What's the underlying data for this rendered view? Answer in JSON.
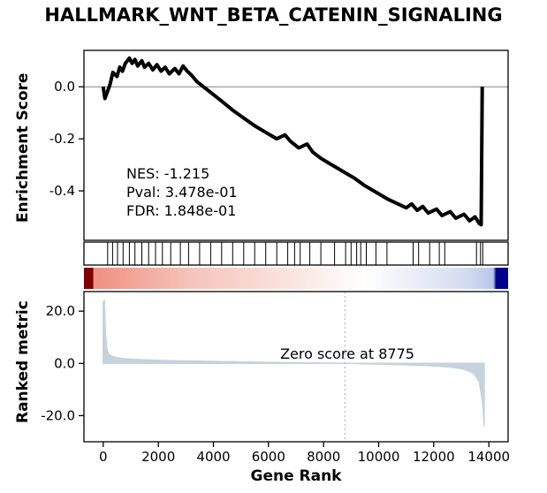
{
  "chart_data": {
    "type": "line",
    "title": "HALLMARK_WNT_BETA_CATENIN_SIGNALING",
    "xlabel": "Gene Rank",
    "xlim": [
      -700,
      14700
    ],
    "xticks": [
      0,
      2000,
      4000,
      6000,
      8000,
      10000,
      12000,
      14000
    ],
    "grid": false,
    "enrichment_score": {
      "ylabel": "Enrichment Score",
      "ylim": [
        -0.59,
        0.14
      ],
      "yticks": [
        0.0,
        -0.2,
        -0.4
      ],
      "line_color": "#000000",
      "zero_line_color": "#808080",
      "stats": {
        "nes_label": "NES: -1.215",
        "pval_label": "Pval: 3.478e-01",
        "fdr_label": "FDR: 1.848e-01",
        "nes": -1.215,
        "pval": "3.478e-01",
        "fdr": "1.848e-01"
      },
      "x": [
        0,
        60,
        150,
        250,
        350,
        500,
        600,
        700,
        800,
        950,
        1050,
        1150,
        1250,
        1400,
        1500,
        1650,
        1800,
        1950,
        2100,
        2250,
        2400,
        2600,
        2750,
        2900,
        3050,
        3200,
        3400,
        3700,
        4000,
        4300,
        4700,
        5100,
        5500,
        5900,
        6300,
        6600,
        6800,
        7100,
        7400,
        7600,
        7900,
        8300,
        8700,
        9100,
        9500,
        9900,
        10300,
        10700,
        11000,
        11200,
        11400,
        11600,
        11800,
        12100,
        12300,
        12600,
        12800,
        13100,
        13300,
        13500,
        13650,
        13720,
        13760
      ],
      "y": [
        0.0,
        -0.045,
        -0.02,
        0.01,
        0.055,
        0.04,
        0.075,
        0.06,
        0.09,
        0.11,
        0.09,
        0.105,
        0.08,
        0.1,
        0.075,
        0.09,
        0.065,
        0.085,
        0.06,
        0.075,
        0.05,
        0.07,
        0.05,
        0.08,
        0.06,
        0.045,
        0.02,
        -0.005,
        -0.03,
        -0.055,
        -0.09,
        -0.12,
        -0.15,
        -0.175,
        -0.2,
        -0.185,
        -0.21,
        -0.235,
        -0.22,
        -0.25,
        -0.275,
        -0.3,
        -0.325,
        -0.35,
        -0.38,
        -0.405,
        -0.43,
        -0.45,
        -0.465,
        -0.45,
        -0.475,
        -0.46,
        -0.485,
        -0.47,
        -0.495,
        -0.48,
        -0.505,
        -0.49,
        -0.515,
        -0.5,
        -0.525,
        -0.53,
        0.0
      ]
    },
    "hits": {
      "color": "#000000",
      "positions": [
        160,
        340,
        520,
        720,
        950,
        1150,
        1400,
        1650,
        1900,
        2150,
        2450,
        2800,
        3100,
        3500,
        3900,
        4300,
        4700,
        5100,
        5500,
        5900,
        6300,
        6700,
        6950,
        7150,
        7500,
        7900,
        8400,
        8800,
        9000,
        9200,
        9350,
        9550,
        9900,
        10300,
        11250,
        11450,
        11850,
        12200,
        12400,
        13550,
        13700,
        13780
      ]
    },
    "colorbar": {
      "stops": [
        {
          "offset": 0,
          "color": "#7f0000"
        },
        {
          "offset": 0.021,
          "color": "#7f0000"
        },
        {
          "offset": 0.023,
          "color": "#ef9181"
        },
        {
          "offset": 0.25,
          "color": "#f5c4ba"
        },
        {
          "offset": 0.5,
          "color": "#fbe6e1"
        },
        {
          "offset": 0.66,
          "color": "#ffffff"
        },
        {
          "offset": 0.8,
          "color": "#e6ebf6"
        },
        {
          "offset": 0.9,
          "color": "#d3dcf1"
        },
        {
          "offset": 0.965,
          "color": "#bac6e9"
        },
        {
          "offset": 0.972,
          "color": "#00008b"
        },
        {
          "offset": 1,
          "color": "#00008b"
        }
      ]
    },
    "ranked_metric": {
      "ylabel": "Ranked metric",
      "ylim": [
        -30,
        27.5
      ],
      "yticks": [
        20.0,
        0.0,
        -20.0
      ],
      "fill_color": "#c6d2dc",
      "zero_cross_rank": 8775,
      "zero_label": "Zero score at 8775",
      "dashed_line_color": "#aaaaaa",
      "x": [
        0,
        40,
        80,
        120,
        160,
        220,
        300,
        450,
        700,
        1100,
        1700,
        2500,
        3500,
        4700,
        6000,
        7400,
        8775,
        9800,
        10800,
        11800,
        12600,
        13100,
        13450,
        13650,
        13780,
        13830
      ],
      "y": [
        23.5,
        24,
        12,
        6.5,
        4.5,
        3.4,
        2.8,
        2.3,
        1.9,
        1.6,
        1.3,
        1.05,
        0.85,
        0.6,
        0.4,
        0.2,
        0.0,
        -0.25,
        -0.5,
        -0.85,
        -1.4,
        -2.2,
        -3.8,
        -7,
        -15,
        -24
      ]
    }
  }
}
